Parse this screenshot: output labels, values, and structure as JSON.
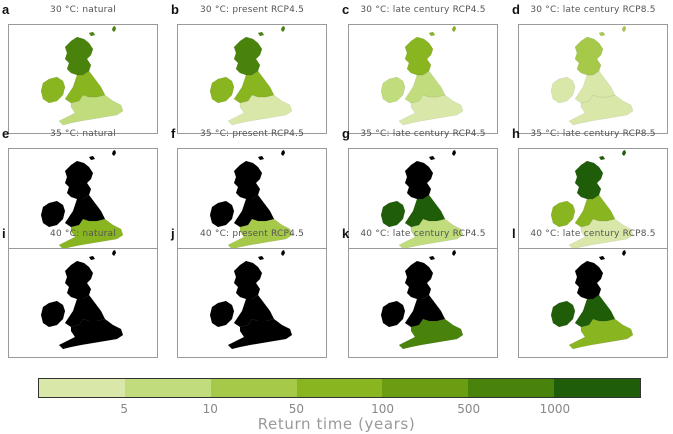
{
  "panels": [
    {
      "letter": "a",
      "title": "30 °C: natural",
      "scenario": "natural",
      "threshold_c": 30,
      "shading": {
        "north": 5,
        "central": 3,
        "south": 1
      }
    },
    {
      "letter": "b",
      "title": "30 °C: present RCP4.5",
      "scenario": "present RCP4.5",
      "threshold_c": 30,
      "shading": {
        "north": 5,
        "central": 3,
        "south": 0
      }
    },
    {
      "letter": "c",
      "title": "30 °C: late century RCP4.5",
      "scenario": "late century RCP4.5",
      "threshold_c": 30,
      "shading": {
        "north": 3,
        "central": 1,
        "south": 0
      }
    },
    {
      "letter": "d",
      "title": "30 °C: late century RCP8.5",
      "scenario": "late century RCP8.5",
      "threshold_c": 30,
      "shading": {
        "north": 2,
        "central": 0,
        "south": 0
      }
    },
    {
      "letter": "e",
      "title": "35 °C: natural",
      "scenario": "natural",
      "threshold_c": 35,
      "shading": {
        "north": 7,
        "central": 7,
        "south": 3
      }
    },
    {
      "letter": "f",
      "title": "35 °C: present RCP4.5",
      "scenario": "present RCP4.5",
      "threshold_c": 35,
      "shading": {
        "north": 7,
        "central": 7,
        "south": 2
      }
    },
    {
      "letter": "g",
      "title": "35 °C: late century RCP4.5",
      "scenario": "late century RCP4.5",
      "threshold_c": 35,
      "shading": {
        "north": 7,
        "central": 6,
        "south": 1
      }
    },
    {
      "letter": "h",
      "title": "35 °C: late century RCP8.5",
      "scenario": "late century RCP8.5",
      "threshold_c": 35,
      "shading": {
        "north": 6,
        "central": 3,
        "south": 0
      }
    },
    {
      "letter": "i",
      "title": "40 °C: natural",
      "scenario": "natural",
      "threshold_c": 40,
      "shading": {
        "north": 7,
        "central": 7,
        "south": 7
      }
    },
    {
      "letter": "j",
      "title": "40 °C: present RCP4.5",
      "scenario": "present RCP4.5",
      "threshold_c": 40,
      "shading": {
        "north": 7,
        "central": 7,
        "south": 7
      }
    },
    {
      "letter": "k",
      "title": "40 °C: late century RCP4.5",
      "scenario": "late century RCP4.5",
      "threshold_c": 40,
      "shading": {
        "north": 7,
        "central": 7,
        "south": 5
      }
    },
    {
      "letter": "l",
      "title": "40 °C: late century RCP8.5",
      "scenario": "late century RCP8.5",
      "threshold_c": 40,
      "shading": {
        "north": 7,
        "central": 6,
        "south": 3
      }
    }
  ],
  "colorbar": {
    "title": "Return time (years)",
    "colors": [
      "#d9e8a9",
      "#c0dc7c",
      "#a6c94a",
      "#89b520",
      "#6b9d12",
      "#4a830c",
      "#1f5d08"
    ],
    "tick_labels": [
      "5",
      "10",
      "50",
      "100",
      "500",
      "1000"
    ]
  }
}
